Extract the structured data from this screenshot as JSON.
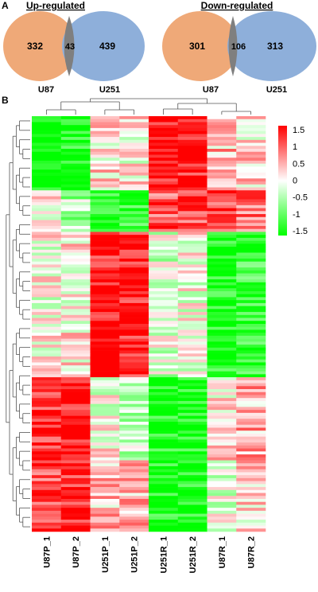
{
  "colors": {
    "venn_left": "#EFA978",
    "venn_right": "#8EAFDA",
    "venn_overlap": "#7F7F7F",
    "heat_low": "#00FF00",
    "heat_mid": "#FFFFFF",
    "heat_high": "#FF0000",
    "text": "#000000"
  },
  "panel_a": {
    "label": "A",
    "venns": [
      {
        "title": "Up-regulated",
        "left_label": "U87",
        "right_label": "U251",
        "left_only": "332",
        "overlap": "43",
        "right_only": "439"
      },
      {
        "title": "Down-regulated",
        "left_label": "U87",
        "right_label": "U251",
        "left_only": "301",
        "overlap": "106",
        "right_only": "313"
      }
    ]
  },
  "panel_b": {
    "label": "B"
  },
  "chart_data": {
    "type": "heatmap",
    "columns": [
      "U87P_1",
      "U87P_2",
      "U251P_1",
      "U251P_2",
      "U251R_1",
      "U251R_2",
      "U87R_1",
      "U87R_2"
    ],
    "color_scale": {
      "range": [
        -1.5,
        1.5
      ],
      "ticks": [
        "1.5",
        "1",
        "0.5",
        "0",
        "-0.5",
        "-1",
        "-1.5"
      ],
      "tick_values": [
        1.5,
        1,
        0.5,
        0,
        -0.5,
        -1,
        -1.5
      ]
    },
    "row_blocks": [
      {
        "fraction": 0.18,
        "values": [
          -1.4,
          -1.4,
          0.2,
          0.1,
          1.4,
          1.4,
          0.4,
          0.2
        ]
      },
      {
        "fraction": 0.1,
        "values": [
          0.0,
          -0.5,
          -1.3,
          -1.3,
          1.0,
          1.0,
          1.2,
          0.8
        ]
      },
      {
        "fraction": 0.35,
        "values": [
          0.0,
          0.1,
          1.4,
          1.4,
          -0.2,
          0.0,
          -1.4,
          -1.2
        ]
      },
      {
        "fraction": 0.2,
        "values": [
          1.3,
          1.4,
          0.0,
          -0.3,
          -1.4,
          -1.4,
          0.2,
          0.5
        ]
      },
      {
        "fraction": 0.17,
        "values": [
          1.1,
          1.3,
          0.4,
          0.5,
          -1.4,
          -1.4,
          -0.1,
          0.2
        ]
      }
    ]
  }
}
